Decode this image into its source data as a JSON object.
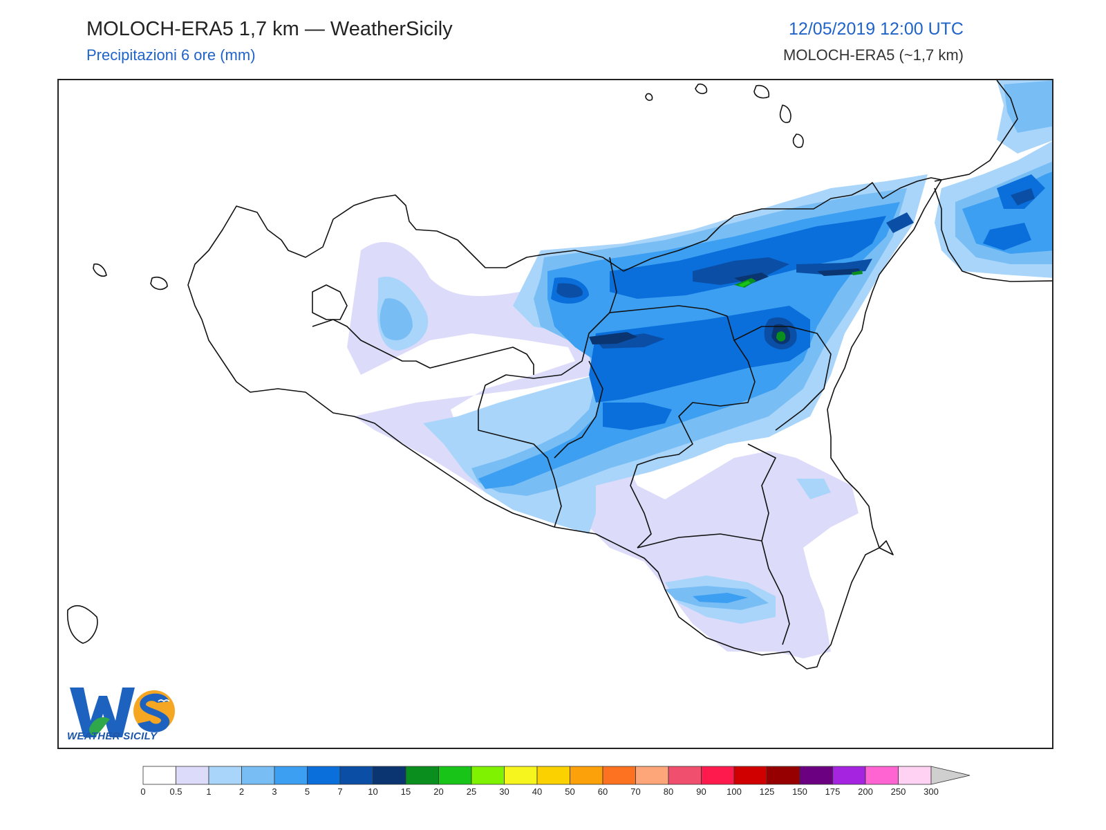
{
  "header": {
    "title": "MOLOCH-ERA5 1,7 km — WeatherSicily",
    "subtitle": "Precipitazioni 6 ore (mm)",
    "datetime": "12/05/2019 12:00 UTC",
    "model": "MOLOCH-ERA5 (~1,7 km)"
  },
  "logo": {
    "caption": "WEATHER SICILY",
    "letters": "WS"
  },
  "legend": {
    "unit": "mm",
    "thresholds": [
      "0",
      "0.5",
      "1",
      "2",
      "3",
      "5",
      "7",
      "10",
      "15",
      "20",
      "25",
      "30",
      "40",
      "50",
      "60",
      "70",
      "80",
      "90",
      "100",
      "125",
      "150",
      "175",
      "200",
      "250",
      "300"
    ],
    "colors": [
      "#ffffff",
      "#dcdcfa",
      "#aad5fa",
      "#78bef5",
      "#3c9ff2",
      "#0a6fdb",
      "#0a4fa5",
      "#0a3570",
      "#0a8f1e",
      "#18c418",
      "#7ef200",
      "#f6f51e",
      "#fbd200",
      "#fca10a",
      "#fc7220",
      "#fca67a",
      "#f0506e",
      "#ff1a4d",
      "#d10000",
      "#960000",
      "#6b0080",
      "#a524e0",
      "#ff64d2",
      "#ffd2f4"
    ],
    "overflow_color": "#cfcfcf"
  },
  "map": {
    "region": "Sicily",
    "colors": {
      "coast": "#111111",
      "c05": "#dcdcfa",
      "c1": "#aad5fa",
      "c2": "#78bef5",
      "c3": "#3c9ff2",
      "c5": "#0a6fdb",
      "c7": "#0a4fa5",
      "c10": "#0a3570",
      "c15": "#0a8f1e",
      "c20": "#18c418"
    }
  }
}
